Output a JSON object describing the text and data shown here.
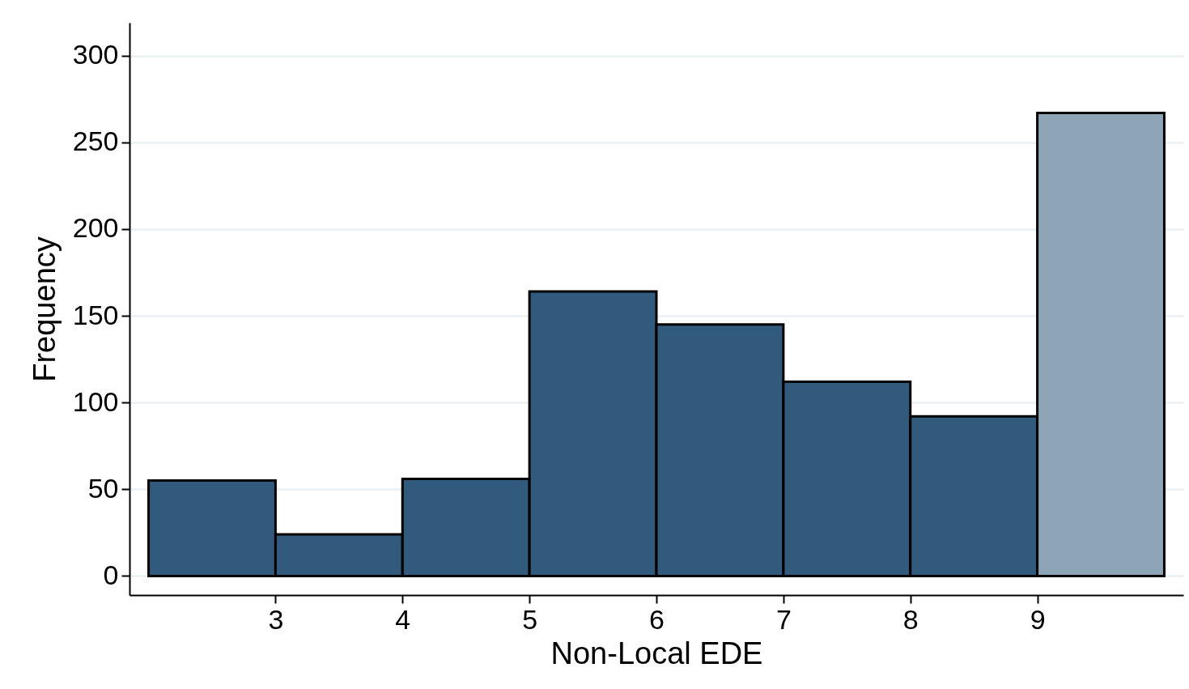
{
  "chart_data": {
    "type": "histogram",
    "xlabel": "Non-Local EDE",
    "ylabel": "Frequency",
    "bins": [
      2,
      3,
      4,
      5,
      6,
      7,
      8,
      9,
      10
    ],
    "values": [
      55,
      24,
      56,
      164,
      145,
      112,
      92,
      267
    ],
    "colors": [
      "#325a7d",
      "#325a7d",
      "#325a7d",
      "#325a7d",
      "#325a7d",
      "#325a7d",
      "#325a7d",
      "#8ea5b8"
    ],
    "xlim": [
      1.85,
      10.15
    ],
    "xticks": [
      3,
      4,
      5,
      6,
      7,
      8,
      9
    ],
    "ylim": [
      -11,
      319
    ],
    "yticks": [
      0,
      50,
      100,
      150,
      200,
      250,
      300
    ],
    "grid": "y"
  }
}
